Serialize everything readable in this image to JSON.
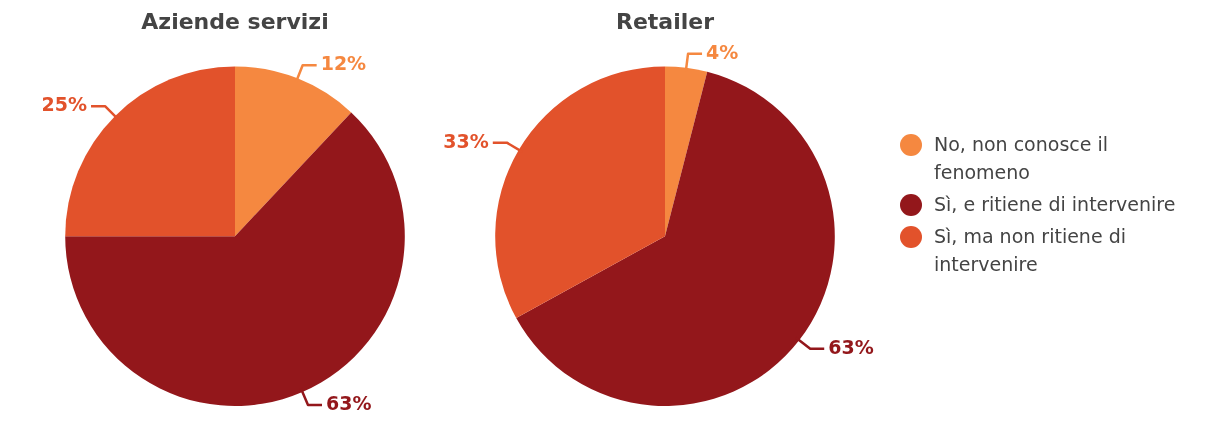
{
  "chart_data": [
    {
      "type": "pie",
      "title": "Aziende servizi",
      "categories": [
        null,
        null,
        null
      ],
      "values": [
        12,
        63,
        25
      ],
      "value_labels": [
        "12%",
        "63%",
        "25%"
      ],
      "colors": [
        "#f58840",
        "#93171b",
        "#e2522b"
      ]
    },
    {
      "type": "pie",
      "title": "Retailer",
      "categories": [
        "No, non conosce il fenomeno",
        "Sì, e ritiene di intervenire",
        "Sì, ma non ritiene di intervenire"
      ],
      "values": [
        4,
        63,
        33
      ],
      "value_labels": [
        "4%",
        "63%",
        "33%"
      ],
      "colors": [
        "#f58840",
        "#93171b",
        "#e2522b"
      ],
      "legend": "right"
    }
  ]
}
